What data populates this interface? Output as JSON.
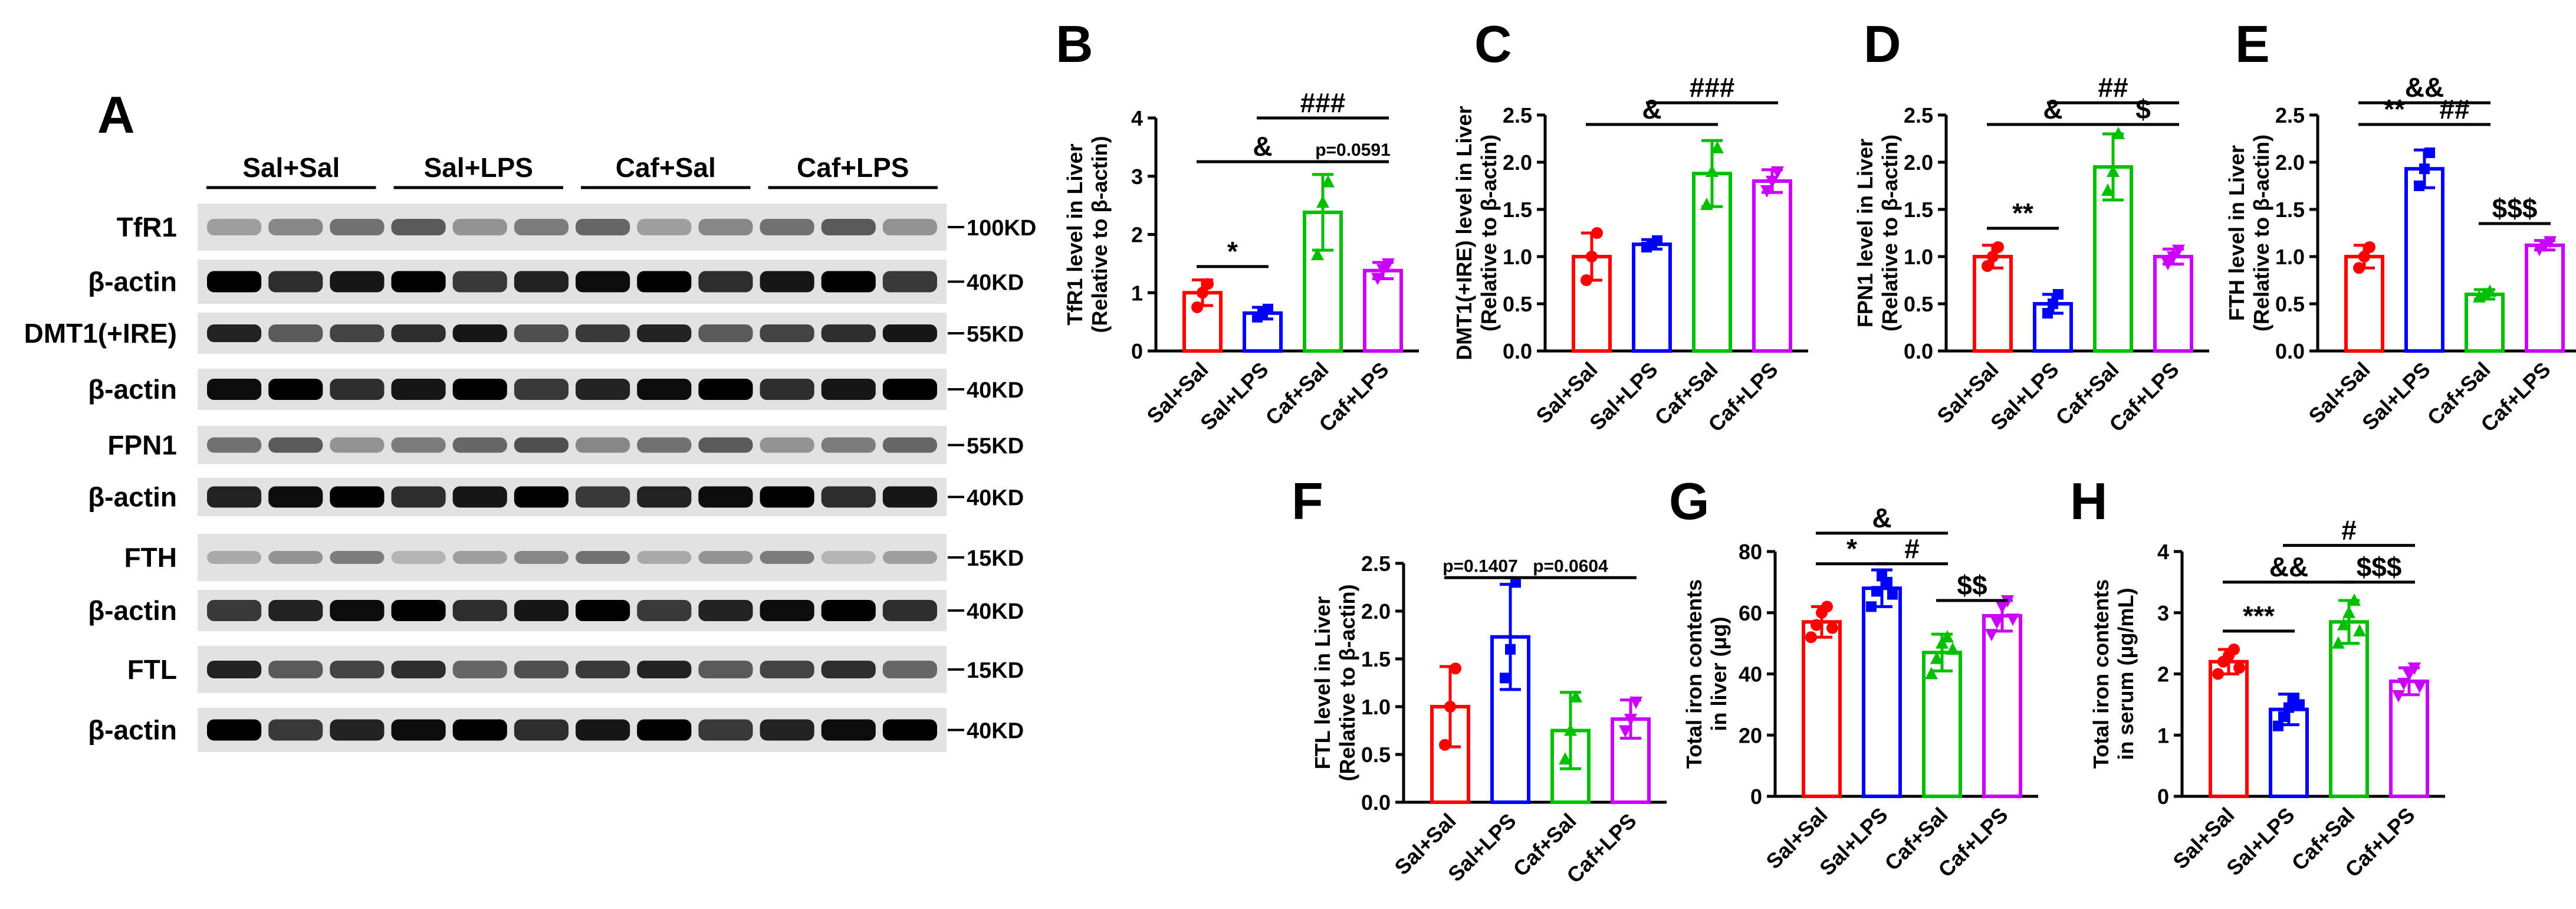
{
  "figure": {
    "panel_A": {
      "letter": "A",
      "groups": [
        "Sal+Sal",
        "Sal+LPS",
        "Caf+Sal",
        "Caf+LPS"
      ],
      "rows": [
        {
          "label": "TfR1",
          "kd": "100KD"
        },
        {
          "label": "β-actin",
          "kd": "40KD"
        },
        {
          "label": "DMT1(+IRE)",
          "kd": "55KD"
        },
        {
          "label": "β-actin",
          "kd": "40KD"
        },
        {
          "label": "FPN1",
          "kd": "55KD"
        },
        {
          "label": "β-actin",
          "kd": "40KD"
        },
        {
          "label": "FTH",
          "kd": "15KD"
        },
        {
          "label": "β-actin",
          "kd": "40KD"
        },
        {
          "label": "FTL",
          "kd": "15KD"
        },
        {
          "label": "β-actin",
          "kd": "40KD"
        }
      ]
    },
    "colors": [
      "#ff0000",
      "#0000ff",
      "#00c000",
      "#cc00ff"
    ]
  },
  "chart_data": [
    {
      "panel": "B",
      "type": "bar",
      "categories": [
        "Sal+Sal",
        "Sal+LPS",
        "Caf+Sal",
        "Caf+LPS"
      ],
      "values": [
        1.0,
        0.65,
        2.38,
        1.38
      ],
      "errors": [
        0.22,
        0.1,
        0.65,
        0.14
      ],
      "points": [
        [
          0.75,
          1.0,
          1.15
        ],
        [
          0.58,
          0.65,
          0.72
        ],
        [
          1.65,
          2.55,
          2.9
        ],
        [
          1.25,
          1.4,
          1.5
        ]
      ],
      "ylabel": [
        "TfR1 level in Liver",
        "(Relative to β-actin)"
      ],
      "ylim": [
        0,
        4
      ],
      "ticks": [
        0,
        1,
        2,
        3,
        4
      ],
      "annotations": [
        {
          "text": "*",
          "from": 0,
          "to": 1,
          "y": 1.45
        },
        {
          "text": "&",
          "from": 0,
          "to": 2,
          "y": 3.25
        },
        {
          "text": "p=0.0591",
          "from": 2,
          "to": 3,
          "y": 3.25
        },
        {
          "text": "###",
          "from": 1,
          "to": 3,
          "y": 4.0
        }
      ]
    },
    {
      "panel": "C",
      "type": "bar",
      "categories": [
        "Sal+Sal",
        "Sal+LPS",
        "Caf+Sal",
        "Caf+LPS"
      ],
      "values": [
        1.0,
        1.13,
        1.88,
        1.8
      ],
      "errors": [
        0.25,
        0.05,
        0.35,
        0.12
      ],
      "points": [
        [
          0.75,
          1.0,
          1.25
        ],
        [
          1.1,
          1.13,
          1.17
        ],
        [
          1.55,
          1.9,
          2.15
        ],
        [
          1.7,
          1.8,
          1.9
        ]
      ],
      "ylabel": [
        "DMT1(+IRE) level in Liver",
        "(Relative to β-actin)"
      ],
      "ylim": [
        0,
        2.5
      ],
      "ticks": [
        0,
        0.5,
        1.0,
        1.5,
        2.0,
        2.5
      ],
      "annotations": [
        {
          "text": "&",
          "from": 0,
          "to": 2,
          "y": 2.4
        },
        {
          "text": "###",
          "from": 1,
          "to": 3,
          "y": 2.63
        }
      ]
    },
    {
      "panel": "D",
      "type": "bar",
      "categories": [
        "Sal+Sal",
        "Sal+LPS",
        "Caf+Sal",
        "Caf+LPS"
      ],
      "values": [
        1.0,
        0.5,
        1.95,
        1.0
      ],
      "errors": [
        0.12,
        0.1,
        0.35,
        0.08
      ],
      "points": [
        [
          0.9,
          1.0,
          1.1
        ],
        [
          0.4,
          0.5,
          0.6
        ],
        [
          1.7,
          1.9,
          2.3
        ],
        [
          0.93,
          1.0,
          1.07
        ]
      ],
      "ylabel": [
        "FPN1 level in Liver",
        "(Relative to β-actin)"
      ],
      "ylim": [
        0,
        2.5
      ],
      "ticks": [
        0,
        0.5,
        1.0,
        1.5,
        2.0,
        2.5
      ],
      "annotations": [
        {
          "text": "**",
          "from": 0,
          "to": 1,
          "y": 1.3
        },
        {
          "text": "&",
          "from": 0,
          "to": 2,
          "y": 2.4
        },
        {
          "text": "$",
          "from": 2,
          "to": 3,
          "y": 2.4
        },
        {
          "text": "##",
          "from": 1,
          "to": 3,
          "y": 2.63
        }
      ]
    },
    {
      "panel": "E",
      "type": "bar",
      "categories": [
        "Sal+Sal",
        "Sal+LPS",
        "Caf+Sal",
        "Caf+LPS"
      ],
      "values": [
        1.0,
        1.93,
        0.6,
        1.12
      ],
      "errors": [
        0.12,
        0.2,
        0.05,
        0.05
      ],
      "points": [
        [
          0.88,
          1.0,
          1.1
        ],
        [
          1.75,
          1.93,
          2.1
        ],
        [
          0.57,
          0.6,
          0.63
        ],
        [
          1.08,
          1.12,
          1.16
        ]
      ],
      "ylabel": [
        "FTH level in Liver",
        "(Relative to β-actin)"
      ],
      "ylim": [
        0,
        2.5
      ],
      "ticks": [
        0,
        0.5,
        1.0,
        1.5,
        2.0,
        2.5
      ],
      "annotations": [
        {
          "text": "**",
          "from": 0,
          "to": 1,
          "y": 2.4
        },
        {
          "text": "##",
          "from": 1,
          "to": 2,
          "y": 2.4
        },
        {
          "text": "$$$",
          "from": 2,
          "to": 3,
          "y": 1.35
        },
        {
          "text": "&&",
          "from": 0,
          "to": 2,
          "y": 2.63
        }
      ]
    },
    {
      "panel": "F",
      "type": "bar",
      "categories": [
        "Sal+Sal",
        "Sal+LPS",
        "Caf+Sal",
        "Caf+LPS"
      ],
      "values": [
        1.0,
        1.73,
        0.75,
        0.87
      ],
      "errors": [
        0.42,
        0.55,
        0.4,
        0.2
      ],
      "points": [
        [
          0.6,
          1.0,
          1.4
        ],
        [
          1.3,
          1.6,
          2.3
        ],
        [
          0.45,
          0.75,
          1.1
        ],
        [
          0.75,
          0.87,
          1.05
        ]
      ],
      "ylabel": [
        "FTL level in Liver",
        "(Relative to β-actin)"
      ],
      "ylim": [
        0,
        2.5
      ],
      "ticks": [
        0,
        0.5,
        1.0,
        1.5,
        2.0,
        2.5
      ],
      "annotations": [
        {
          "text": "p=0.1407",
          "from": 0,
          "to": 1,
          "y": 2.35
        },
        {
          "text": "p=0.0604",
          "from": 1,
          "to": 3,
          "y": 2.35
        }
      ]
    },
    {
      "panel": "G",
      "type": "bar",
      "categories": [
        "Sal+Sal",
        "Sal+LPS",
        "Caf+Sal",
        "Caf+LPS"
      ],
      "values": [
        57,
        68,
        47,
        59
      ],
      "errors": [
        5,
        6,
        6,
        5
      ],
      "points": [
        [
          52,
          56,
          60,
          62,
          55
        ],
        [
          62,
          67,
          72,
          70,
          66
        ],
        [
          40,
          45,
          50,
          52,
          48
        ],
        [
          53,
          57,
          62,
          64,
          58
        ]
      ],
      "ylabel": [
        "Total iron contents",
        "in liver (μg)"
      ],
      "ylim": [
        0,
        80
      ],
      "ticks": [
        0,
        20,
        40,
        60,
        80
      ],
      "annotations": [
        {
          "text": "*",
          "from": 0,
          "to": 1,
          "y": 76
        },
        {
          "text": "#",
          "from": 1,
          "to": 2,
          "y": 76
        },
        {
          "text": "$$",
          "from": 2,
          "to": 3,
          "y": 64
        },
        {
          "text": "&",
          "from": 0,
          "to": 2,
          "y": 86
        }
      ]
    },
    {
      "panel": "H",
      "type": "bar",
      "categories": [
        "Sal+Sal",
        "Sal+LPS",
        "Caf+Sal",
        "Caf+LPS"
      ],
      "values": [
        2.2,
        1.42,
        2.85,
        1.88
      ],
      "errors": [
        0.2,
        0.25,
        0.35,
        0.22
      ],
      "points": [
        [
          2.0,
          2.2,
          2.3,
          2.4,
          2.1
        ],
        [
          1.15,
          1.3,
          1.45,
          1.6,
          1.5
        ],
        [
          2.5,
          2.8,
          3.0,
          3.2,
          2.7
        ],
        [
          1.65,
          1.85,
          2.0,
          2.1,
          1.8
        ]
      ],
      "ylabel": [
        "Total iron contents",
        "in serum (μg/mL)"
      ],
      "ylim": [
        0,
        4
      ],
      "ticks": [
        0,
        1,
        2,
        3,
        4
      ],
      "annotations": [
        {
          "text": "***",
          "from": 0,
          "to": 1,
          "y": 2.7
        },
        {
          "text": "&&",
          "from": 0,
          "to": 2,
          "y": 3.5
        },
        {
          "text": "$$$",
          "from": 2,
          "to": 3,
          "y": 3.5
        },
        {
          "text": "#",
          "from": 1,
          "to": 3,
          "y": 4.1
        }
      ]
    }
  ]
}
